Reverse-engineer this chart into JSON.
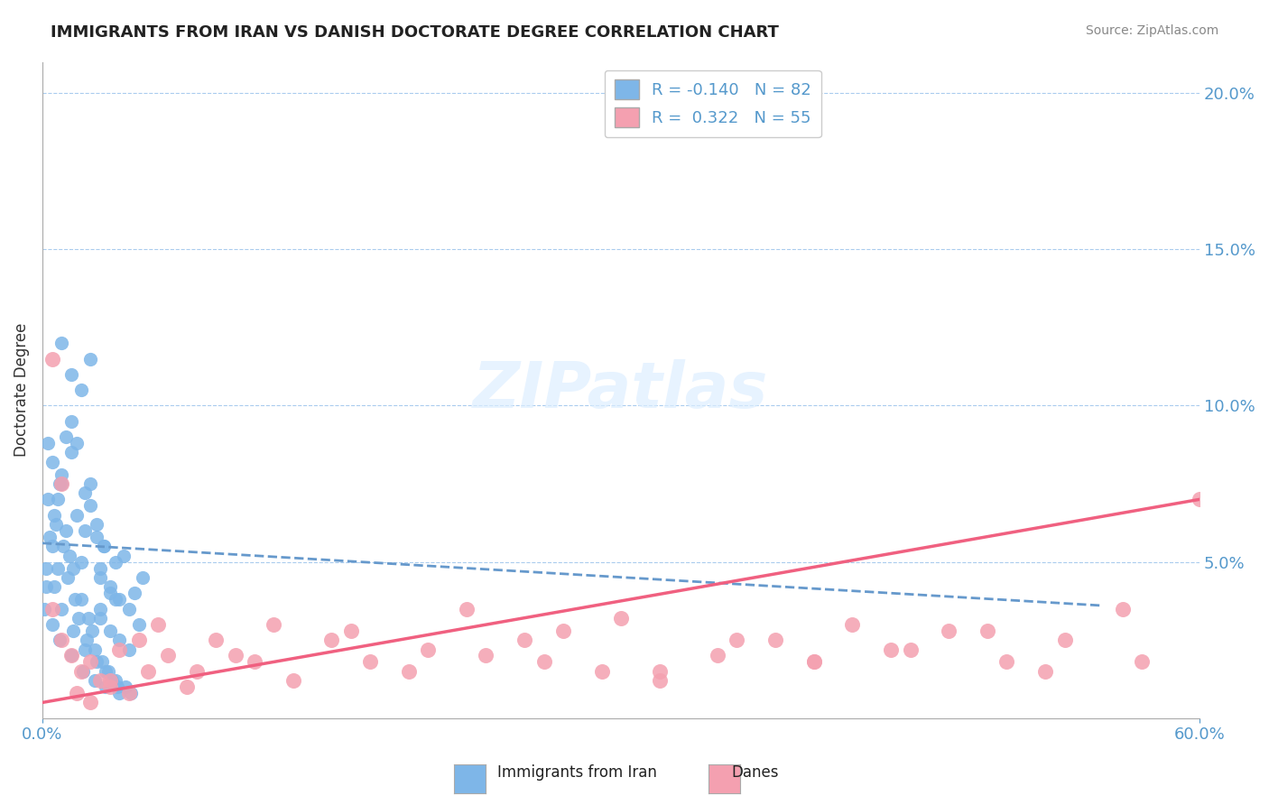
{
  "title": "IMMIGRANTS FROM IRAN VS DANISH DOCTORATE DEGREE CORRELATION CHART",
  "source_text": "Source: ZipAtlas.com",
  "xlabel": "",
  "ylabel": "Doctorate Degree",
  "xlim": [
    0.0,
    0.6
  ],
  "ylim": [
    0.0,
    0.21
  ],
  "ytick_positions": [
    0.05,
    0.1,
    0.15,
    0.2
  ],
  "ytick_labels": [
    "5.0%",
    "10.0%",
    "15.0%",
    "20.0%"
  ],
  "legend_r1": "R = -0.140",
  "legend_n1": "N = 82",
  "legend_r2": "R =  0.322",
  "legend_n2": "N = 55",
  "color_iran": "#7EB6E8",
  "color_danes": "#F4A0B0",
  "color_iran_line": "#6699CC",
  "color_danes_line": "#F06080",
  "watermark": "ZIPatlas",
  "background_color": "#FFFFFF",
  "title_fontsize": 13,
  "axis_color": "#5599CC",
  "iran_scatter_x": [
    0.005,
    0.008,
    0.01,
    0.012,
    0.015,
    0.018,
    0.02,
    0.022,
    0.025,
    0.028,
    0.03,
    0.032,
    0.035,
    0.038,
    0.04,
    0.042,
    0.045,
    0.048,
    0.05,
    0.052,
    0.005,
    0.008,
    0.012,
    0.015,
    0.018,
    0.022,
    0.025,
    0.028,
    0.03,
    0.032,
    0.035,
    0.038,
    0.01,
    0.015,
    0.02,
    0.025,
    0.03,
    0.035,
    0.04,
    0.045,
    0.002,
    0.004,
    0.006,
    0.01,
    0.014,
    0.016,
    0.02,
    0.024,
    0.026,
    0.03,
    0.003,
    0.007,
    0.011,
    0.013,
    0.017,
    0.019,
    0.023,
    0.027,
    0.031,
    0.033,
    0.036,
    0.039,
    0.001,
    0.005,
    0.009,
    0.015,
    0.021,
    0.027,
    0.033,
    0.04,
    0.002,
    0.006,
    0.01,
    0.016,
    0.022,
    0.028,
    0.034,
    0.038,
    0.043,
    0.046,
    0.003,
    0.009
  ],
  "iran_scatter_y": [
    0.055,
    0.048,
    0.075,
    0.06,
    0.085,
    0.065,
    0.05,
    0.072,
    0.068,
    0.058,
    0.045,
    0.055,
    0.042,
    0.05,
    0.038,
    0.052,
    0.035,
    0.04,
    0.03,
    0.045,
    0.082,
    0.07,
    0.09,
    0.095,
    0.088,
    0.06,
    0.075,
    0.062,
    0.048,
    0.055,
    0.04,
    0.038,
    0.12,
    0.11,
    0.105,
    0.115,
    0.032,
    0.028,
    0.025,
    0.022,
    0.042,
    0.058,
    0.065,
    0.078,
    0.052,
    0.048,
    0.038,
    0.032,
    0.028,
    0.035,
    0.07,
    0.062,
    0.055,
    0.045,
    0.038,
    0.032,
    0.025,
    0.022,
    0.018,
    0.015,
    0.012,
    0.01,
    0.035,
    0.03,
    0.025,
    0.02,
    0.015,
    0.012,
    0.01,
    0.008,
    0.048,
    0.042,
    0.035,
    0.028,
    0.022,
    0.018,
    0.015,
    0.012,
    0.01,
    0.008,
    0.088,
    0.075
  ],
  "danes_scatter_x": [
    0.005,
    0.01,
    0.015,
    0.02,
    0.025,
    0.03,
    0.035,
    0.04,
    0.05,
    0.06,
    0.08,
    0.1,
    0.12,
    0.15,
    0.17,
    0.2,
    0.22,
    0.25,
    0.27,
    0.3,
    0.32,
    0.35,
    0.38,
    0.4,
    0.42,
    0.45,
    0.47,
    0.5,
    0.53,
    0.56,
    0.005,
    0.01,
    0.018,
    0.025,
    0.035,
    0.045,
    0.055,
    0.065,
    0.075,
    0.09,
    0.11,
    0.13,
    0.16,
    0.19,
    0.23,
    0.26,
    0.29,
    0.32,
    0.36,
    0.4,
    0.44,
    0.49,
    0.52,
    0.57,
    0.6
  ],
  "danes_scatter_y": [
    0.035,
    0.025,
    0.02,
    0.015,
    0.018,
    0.012,
    0.01,
    0.022,
    0.025,
    0.03,
    0.015,
    0.02,
    0.03,
    0.025,
    0.018,
    0.022,
    0.035,
    0.025,
    0.028,
    0.032,
    0.015,
    0.02,
    0.025,
    0.018,
    0.03,
    0.022,
    0.028,
    0.018,
    0.025,
    0.035,
    0.115,
    0.075,
    0.008,
    0.005,
    0.012,
    0.008,
    0.015,
    0.02,
    0.01,
    0.025,
    0.018,
    0.012,
    0.028,
    0.015,
    0.02,
    0.018,
    0.015,
    0.012,
    0.025,
    0.018,
    0.022,
    0.028,
    0.015,
    0.018,
    0.07
  ],
  "iran_trend_x": [
    0.0,
    0.55
  ],
  "iran_trend_y_start": 0.056,
  "iran_trend_y_end": 0.036,
  "danes_trend_x": [
    0.0,
    0.6
  ],
  "danes_trend_y_start": 0.005,
  "danes_trend_y_end": 0.07
}
